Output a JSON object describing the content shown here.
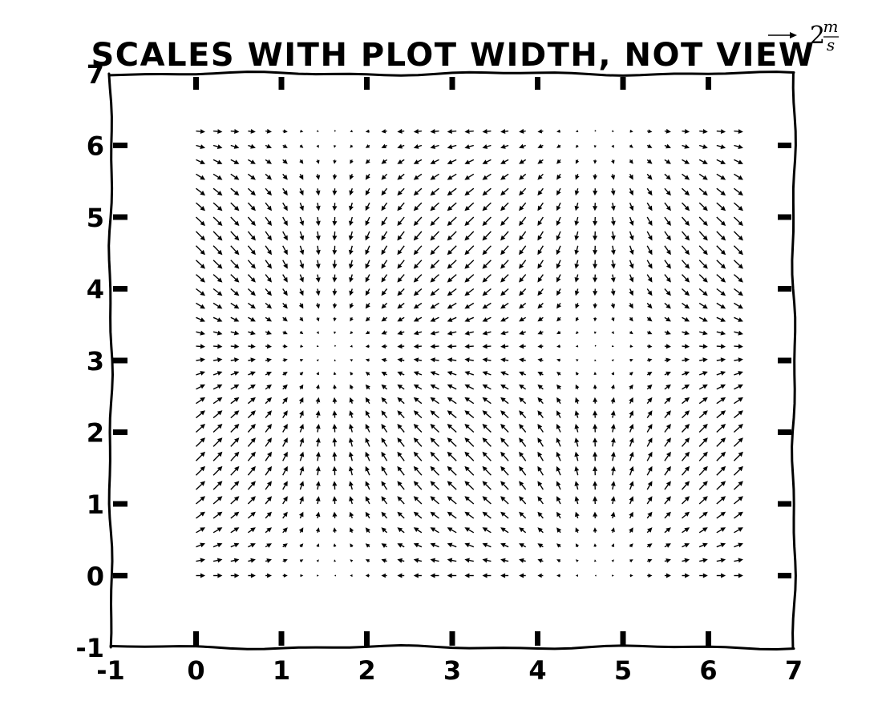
{
  "chart_data": {
    "type": "quiver",
    "title": "SCALES WITH PLOT WIDTH, NOT VIEW",
    "xlabel": "",
    "ylabel": "",
    "xlim": [
      -1,
      7
    ],
    "ylim": [
      -1,
      7
    ],
    "xticks": [
      -1,
      0,
      1,
      2,
      3,
      4,
      5,
      6,
      7
    ],
    "yticks": [
      -1,
      0,
      1,
      2,
      3,
      4,
      5,
      6,
      7
    ],
    "grid": false,
    "field": {
      "x_range": [
        0,
        6.3
      ],
      "y_range": [
        0,
        6.2
      ],
      "nx": 32,
      "ny": 32,
      "u": "cos(x)",
      "v": "sin(y)"
    },
    "key": {
      "value": 2,
      "label_number": "2",
      "label_unit_top": "m",
      "label_unit_bottom": "s",
      "placement": "top-right"
    },
    "colors": {
      "arrows": "#000000",
      "axes": "#000000",
      "background": "#ffffff"
    }
  }
}
